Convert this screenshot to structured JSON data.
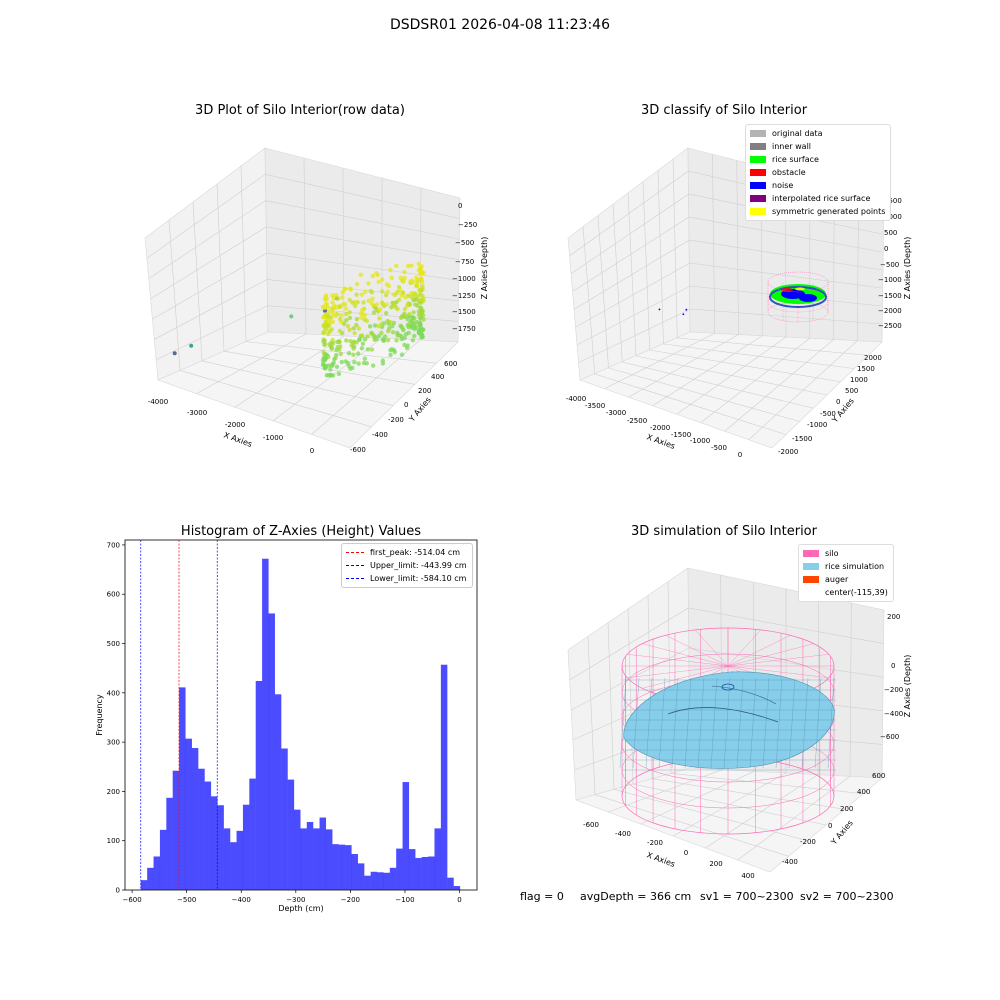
{
  "figure": {
    "suptitle": "DSDSR01 2026-04-08 11:23:46",
    "status_line": {
      "flag": "flag = 0",
      "avg_depth": "avgDepth = 366 cm",
      "sv1": "sv1 = 700~2300",
      "sv2": "sv2 = 700~2300"
    }
  },
  "chart_data": [
    {
      "type": "scatter",
      "projection": "3d",
      "title": "3D Plot of Silo Interior(row data)",
      "xlabel": "X Axies",
      "ylabel": "Y Axies",
      "zlabel": "Z Axies (Depth)",
      "xticks": [
        "-4000",
        "-3000",
        "-2000",
        "-1000",
        "0"
      ],
      "yticks": [
        "-600",
        "-400",
        "-200",
        "0",
        "200",
        "400",
        "600"
      ],
      "zticks": [
        "0",
        "−250",
        "−500",
        "−750",
        "−1000",
        "−1250",
        "−1500",
        "−1750"
      ],
      "xlim": [
        -4200,
        300
      ],
      "ylim": [
        -650,
        700
      ],
      "zlim": [
        -1850,
        50
      ],
      "grid": true,
      "colormap": [
        "#440154",
        "#3b528b",
        "#21908d",
        "#5dc963",
        "#a0da39",
        "#fde725"
      ],
      "outlier_points": [
        {
          "x": -4000,
          "y": -550,
          "z": -1500
        },
        {
          "x": -3900,
          "y": -400,
          "z": -1450
        },
        {
          "x": -2700,
          "y": 200,
          "z": -1100
        },
        {
          "x": -2100,
          "y": 300,
          "z": -950
        },
        {
          "x": -2200,
          "y": 500,
          "z": -900
        }
      ],
      "cluster": {
        "x_range": [
          -900,
          100
        ],
        "y_range": [
          -600,
          600
        ],
        "z_range": [
          -1300,
          -100
        ],
        "value_colors": [
          "#7ed957",
          "#a0da39",
          "#c8e020",
          "#e6e51a"
        ]
      }
    },
    {
      "type": "scatter",
      "projection": "3d",
      "title": "3D classify of Silo Interior",
      "xlabel": "X Axies",
      "ylabel": "Y Axies",
      "zlabel": "Z Axies (Depth)",
      "xticks": [
        "-4000",
        "-3500",
        "-3000",
        "-2500",
        "-2000",
        "-1500",
        "-1000",
        "-500",
        "0"
      ],
      "yticks": [
        "-2000",
        "-1500",
        "-1000",
        "-500",
        "0",
        "500",
        "1000",
        "1500",
        "2000"
      ],
      "zticks": [
        "1500",
        "1000",
        "500",
        "0",
        "−500",
        "−1000",
        "−1500",
        "−2000",
        "−2500"
      ],
      "xlim": [
        -4200,
        300
      ],
      "ylim": [
        -2100,
        2200
      ],
      "zlim": [
        -2800,
        1700
      ],
      "grid": true,
      "legend": {
        "placement": "upper-right",
        "entries": [
          {
            "label": "original data",
            "color": "#b3b3b3"
          },
          {
            "label": "inner wall",
            "color": "#808080"
          },
          {
            "label": "rice surface",
            "color": "#00ff00"
          },
          {
            "label": "obstacle",
            "color": "#ff0000"
          },
          {
            "label": "noise",
            "color": "#0000ff"
          },
          {
            "label": "interpolated rice surface",
            "color": "#800080"
          },
          {
            "label": "symmetric generated points",
            "color": "#ffff00"
          }
        ]
      },
      "noise_points": [
        {
          "x": -3500,
          "y": -200,
          "z": -900
        },
        {
          "x": -3000,
          "y": -100,
          "z": -850
        },
        {
          "x": -3050,
          "y": 100,
          "z": -800
        }
      ]
    },
    {
      "type": "bar",
      "subtype": "histogram",
      "title": "Histogram of Z-Axies (Height) Values",
      "xlabel": "Depth (cm)",
      "ylabel": "Frequency",
      "xlim": [
        -613,
        32
      ],
      "ylim": [
        0,
        710
      ],
      "xticks": [
        -600,
        -500,
        -400,
        -300,
        -200,
        -100,
        0
      ],
      "xtick_labels": [
        "−600",
        "−500",
        "−400",
        "−300",
        "−200",
        "−100",
        "0"
      ],
      "yticks": [
        0,
        100,
        200,
        300,
        400,
        500,
        600,
        700
      ],
      "bin_start": -584.1,
      "bin_width": 11.7,
      "color": "#0000ff",
      "values": [
        20,
        45,
        68,
        122,
        187,
        242,
        411,
        307,
        288,
        246,
        220,
        190,
        172,
        125,
        97,
        120,
        173,
        226,
        424,
        672,
        561,
        397,
        287,
        224,
        163,
        125,
        138,
        125,
        147,
        123,
        93,
        92,
        91,
        73,
        54,
        29,
        37,
        36,
        35,
        45,
        84,
        219,
        83,
        65,
        67,
        68,
        125,
        457,
        25,
        8
      ],
      "grid": false,
      "reference_lines": [
        {
          "label": "first_peak: -514.04 cm",
          "x": -514.04,
          "color": "#ff0000"
        },
        {
          "label": "Upper_limit: -443.99 cm",
          "x": -443.99,
          "color": "#0000ff"
        },
        {
          "label": "Lower_limit: -584.10 cm",
          "x": -584.1,
          "color": "#0000ff"
        }
      ],
      "legend": {
        "placement": "upper-right"
      }
    },
    {
      "type": "surface",
      "projection": "3d",
      "title": "3D simulation of Silo Interior",
      "xlabel": "X Axies",
      "ylabel": "Y Axies",
      "zlabel": "Z Axies (Depth)",
      "xticks": [
        "-600",
        "-400",
        "-200",
        "0",
        "200",
        "400"
      ],
      "yticks": [
        "-400",
        "-200",
        "0",
        "200",
        "400",
        "600"
      ],
      "zticks": [
        "200",
        "0",
        "−200",
        "−400",
        "−600"
      ],
      "xlim": [
        -700,
        450
      ],
      "ylim": [
        -500,
        650
      ],
      "zlim": [
        -800,
        350
      ],
      "grid": true,
      "legend": {
        "placement": "upper-right",
        "entries": [
          {
            "label": "silo",
            "color": "#ff69b4"
          },
          {
            "label": "rice simulation",
            "color": "#87ceeb"
          },
          {
            "label": "auger",
            "color": "#ff4500"
          },
          {
            "label": "center(-115,39)",
            "color": "#ffffff"
          }
        ]
      },
      "center": {
        "x": -115,
        "y": 39
      }
    }
  ]
}
